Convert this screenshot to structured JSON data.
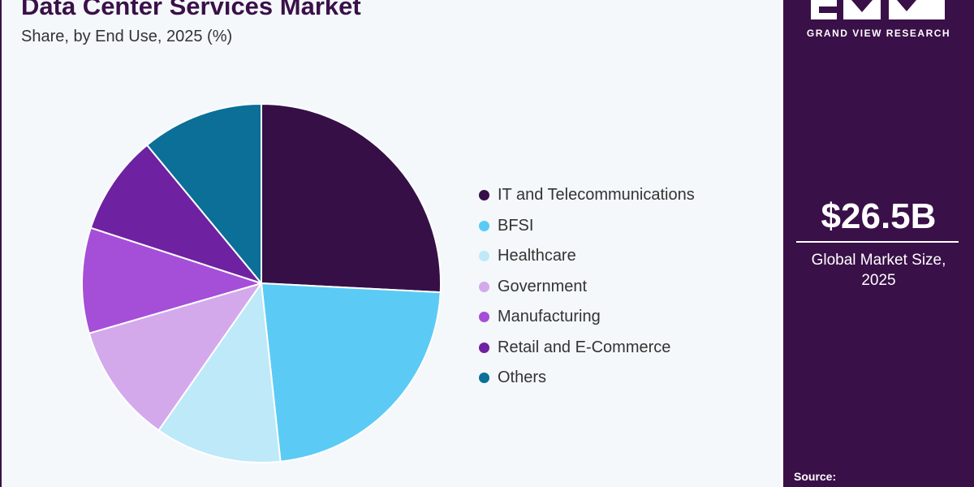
{
  "header": {
    "title": "Data Center Services Market",
    "subtitle": "Share, by End Use, 2025 (%)"
  },
  "sidebar": {
    "brand": "GRAND VIEW RESEARCH",
    "market_size": "$26.5B",
    "market_label_line1": "Global Market Size,",
    "market_label_line2": "2025",
    "source_label": "Source:"
  },
  "chart_data": {
    "type": "pie",
    "title": "Data Center Services Market",
    "subtitle": "Share, by End Use, 2025 (%)",
    "legend_position": "right",
    "categories": [
      "IT and Telecommunications",
      "BFSI",
      "Healthcare",
      "Government",
      "Manufacturing",
      "Retail and E-Commerce",
      "Others"
    ],
    "values": [
      25.8,
      22.5,
      11.4,
      10.8,
      9.5,
      9.0,
      11.0
    ],
    "colors": [
      "#360f47",
      "#5bcbf5",
      "#bde9f8",
      "#d4a9ec",
      "#a54ed8",
      "#6e21a0",
      "#0b6f98"
    ]
  }
}
